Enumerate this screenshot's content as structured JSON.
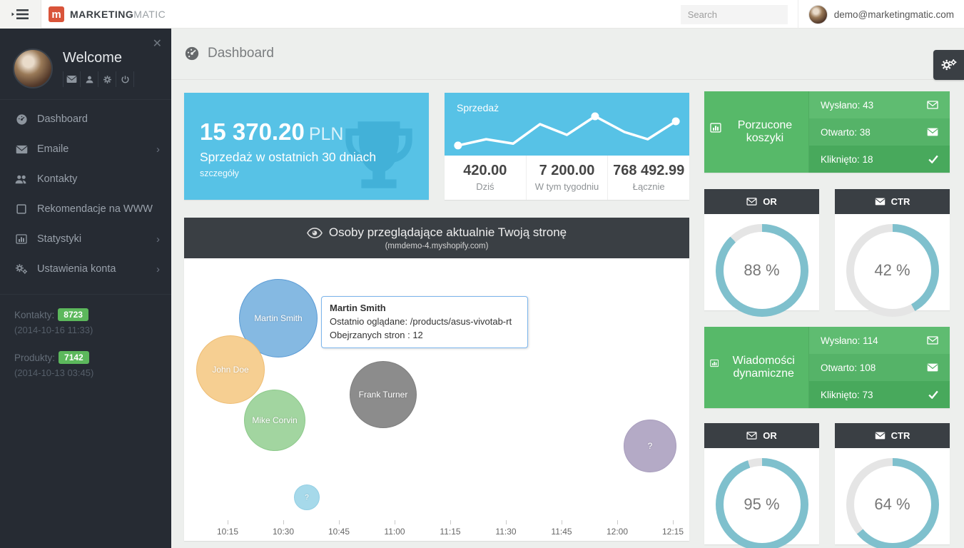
{
  "topbar": {
    "brand_bold": "MARKETING",
    "brand_light": "MATIC",
    "brand_mark": "m",
    "search_placeholder": "Search",
    "user_email": "demo@marketingmatic.com"
  },
  "sidebar": {
    "welcome": "Welcome",
    "nav": [
      {
        "label": "Dashboard",
        "icon": "dashboard-icon",
        "has_submenu": false
      },
      {
        "label": "Emaile",
        "icon": "envelope-icon",
        "has_submenu": true
      },
      {
        "label": "Kontakty",
        "icon": "users-icon",
        "has_submenu": false
      },
      {
        "label": "Rekomendacje na WWW",
        "icon": "square-icon",
        "has_submenu": false
      },
      {
        "label": "Statystyki",
        "icon": "bar-chart-icon",
        "has_submenu": true
      },
      {
        "label": "Ustawienia konta",
        "icon": "gears-icon",
        "has_submenu": true
      }
    ],
    "stats": [
      {
        "label": "Kontakty:",
        "value": "8723",
        "date": "(2014-10-16 11:33)"
      },
      {
        "label": "Produkty:",
        "value": "7142",
        "date": "(2014-10-13 03:45)"
      }
    ]
  },
  "header": {
    "title": "Dashboard"
  },
  "cards": {
    "revenue": {
      "amount": "15 370.20",
      "currency": "PLN",
      "subtitle": "Sprzedaż w ostatnich 30 dniach",
      "link": "szczegóły"
    },
    "sales": {
      "title": "Sprzedaż",
      "stats": [
        {
          "value": "420.00",
          "label": "Dziś"
        },
        {
          "value": "7 200.00",
          "label": "W tym tygodniu"
        },
        {
          "value": "768 492.99",
          "label": "Łącznie"
        }
      ]
    },
    "abandoned": {
      "title": "Porzucone koszyki",
      "rows": [
        {
          "label": "Wysłano: 43",
          "icon": "envelope-outline-icon"
        },
        {
          "label": "Otwarto: 38",
          "icon": "envelope-filled-icon"
        },
        {
          "label": "Kliknięto: 18",
          "icon": "check-icon"
        }
      ]
    },
    "dynamic": {
      "title": "Wiadomości dynamiczne",
      "rows": [
        {
          "label": "Wysłano: 114",
          "icon": "envelope-outline-icon"
        },
        {
          "label": "Otwarto: 108",
          "icon": "envelope-filled-icon"
        },
        {
          "label": "Kliknięto: 73",
          "icon": "check-icon"
        }
      ]
    }
  },
  "visitors": {
    "title": "Osoby przeglądające aktualnie Twoją stronę",
    "subtitle": "(mmdemo-4.myshopify.com)",
    "tooltip": {
      "name": "Martin Smith",
      "line1": "Ostatnio oglądane: /products/asus-vivotab-rt",
      "line2": "Obejrzanych stron : 12"
    }
  },
  "theme": {
    "accent_blue": "#57c2e6",
    "green": "#57b969",
    "dark_panel": "#3a3f44",
    "donut_color": "#7fc0cd",
    "donut_track": "#e5e5e5",
    "badge_green": "#5cb85c",
    "brand_orange": "#d9543a"
  },
  "chart_data": [
    {
      "type": "line",
      "title": "Sprzedaż",
      "points_pct": [
        [
          5.5,
          84
        ],
        [
          17,
          74
        ],
        [
          28,
          81
        ],
        [
          39,
          50
        ],
        [
          50,
          67
        ],
        [
          61.5,
          37.5
        ],
        [
          73.5,
          62.5
        ],
        [
          83,
          74
        ],
        [
          94.5,
          45.5
        ]
      ],
      "dot_indices": [
        0,
        5,
        8
      ],
      "note": "white sparkline on blue, no axes"
    },
    {
      "type": "scatter",
      "title": "Osoby przeglądające aktualnie Twoją stronę",
      "x_ticks": [
        "10:15",
        "10:30",
        "10:45",
        "11:00",
        "11:15",
        "11:30",
        "11:45",
        "12:00",
        "12:15"
      ],
      "bubbles": [
        {
          "label": "Martin Smith",
          "x_approx": "10:30",
          "color": "#85b9e2",
          "border": "#5b9bd5"
        },
        {
          "label": "John Doe",
          "x_approx": "10:27",
          "color": "#f6cf92",
          "border": "#eebd74"
        },
        {
          "label": "Mike Corvin",
          "x_approx": "10:31",
          "color": "#a2d5a0",
          "border": "#8cc98a"
        },
        {
          "label": "Frank Turner",
          "x_approx": "10:50",
          "color": "#8c8c8c",
          "border": "#7f7f7f"
        },
        {
          "label": "?",
          "x_approx": "12:07",
          "color": "#b4aac6",
          "border": "#a89dbd"
        },
        {
          "label": "?",
          "x_approx": "10:36",
          "color": "#a6d9ea",
          "border": "#93cfe4"
        }
      ]
    },
    {
      "type": "donut",
      "gauges": [
        {
          "title": "OR",
          "value": 88,
          "label": "88 %",
          "icon": "envelope-outline-icon"
        },
        {
          "title": "CTR",
          "value": 42,
          "label": "42 %",
          "icon": "envelope-filled-icon"
        },
        {
          "title": "OR",
          "value": 95,
          "label": "95 %",
          "icon": "envelope-outline-icon"
        },
        {
          "title": "CTR",
          "value": 64,
          "label": "64 %",
          "icon": "envelope-filled-icon"
        }
      ]
    }
  ]
}
